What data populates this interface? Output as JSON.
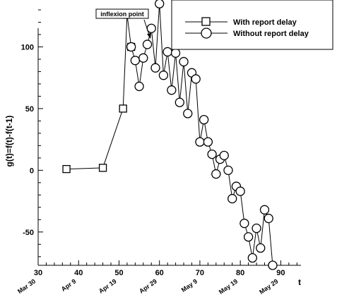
{
  "chart_data": {
    "type": "line",
    "xlabel": "t",
    "ylabel": "g(t)=f(t)-f(t-1)",
    "xlim": [
      30,
      95
    ],
    "ylim": [
      -77,
      138
    ],
    "xticks": [
      30,
      40,
      50,
      60,
      70,
      80,
      90
    ],
    "yticks": [
      -50,
      0,
      50,
      100
    ],
    "date_labels": [
      {
        "x": 30,
        "label": "Mar 30"
      },
      {
        "x": 40,
        "label": "Apr 9"
      },
      {
        "x": 50,
        "label": "Apr 19"
      },
      {
        "x": 60,
        "label": "Apr 29"
      },
      {
        "x": 70,
        "label": "May 9"
      },
      {
        "x": 80,
        "label": "May 19"
      },
      {
        "x": 90,
        "label": "May 29"
      }
    ],
    "annotation": {
      "text": "inflexion point",
      "x": 58,
      "y": 118
    },
    "legend_position": "top-right",
    "series": [
      {
        "name": "With report delay",
        "marker": "square",
        "x": [
          37,
          46,
          51,
          52,
          53
        ],
        "y": [
          1,
          2,
          50,
          126,
          100
        ]
      },
      {
        "name": "Without report delay",
        "marker": "circle",
        "x": [
          53,
          54,
          55,
          56,
          57,
          58,
          59,
          60,
          61,
          62,
          63,
          64,
          65,
          66,
          67,
          68,
          69,
          70,
          71,
          72,
          73,
          74,
          75,
          76,
          77,
          78,
          79,
          80,
          81,
          82,
          83,
          84,
          85,
          86,
          87,
          88
        ],
        "y": [
          100,
          89,
          68,
          91,
          102,
          115,
          83,
          135,
          77,
          96,
          65,
          95,
          55,
          88,
          46,
          79,
          74,
          23,
          41,
          23,
          13,
          -3,
          9,
          12,
          0,
          -23,
          -13,
          -17,
          -43,
          -54,
          -71,
          -47,
          -63,
          -32,
          -39,
          -77
        ]
      }
    ]
  }
}
